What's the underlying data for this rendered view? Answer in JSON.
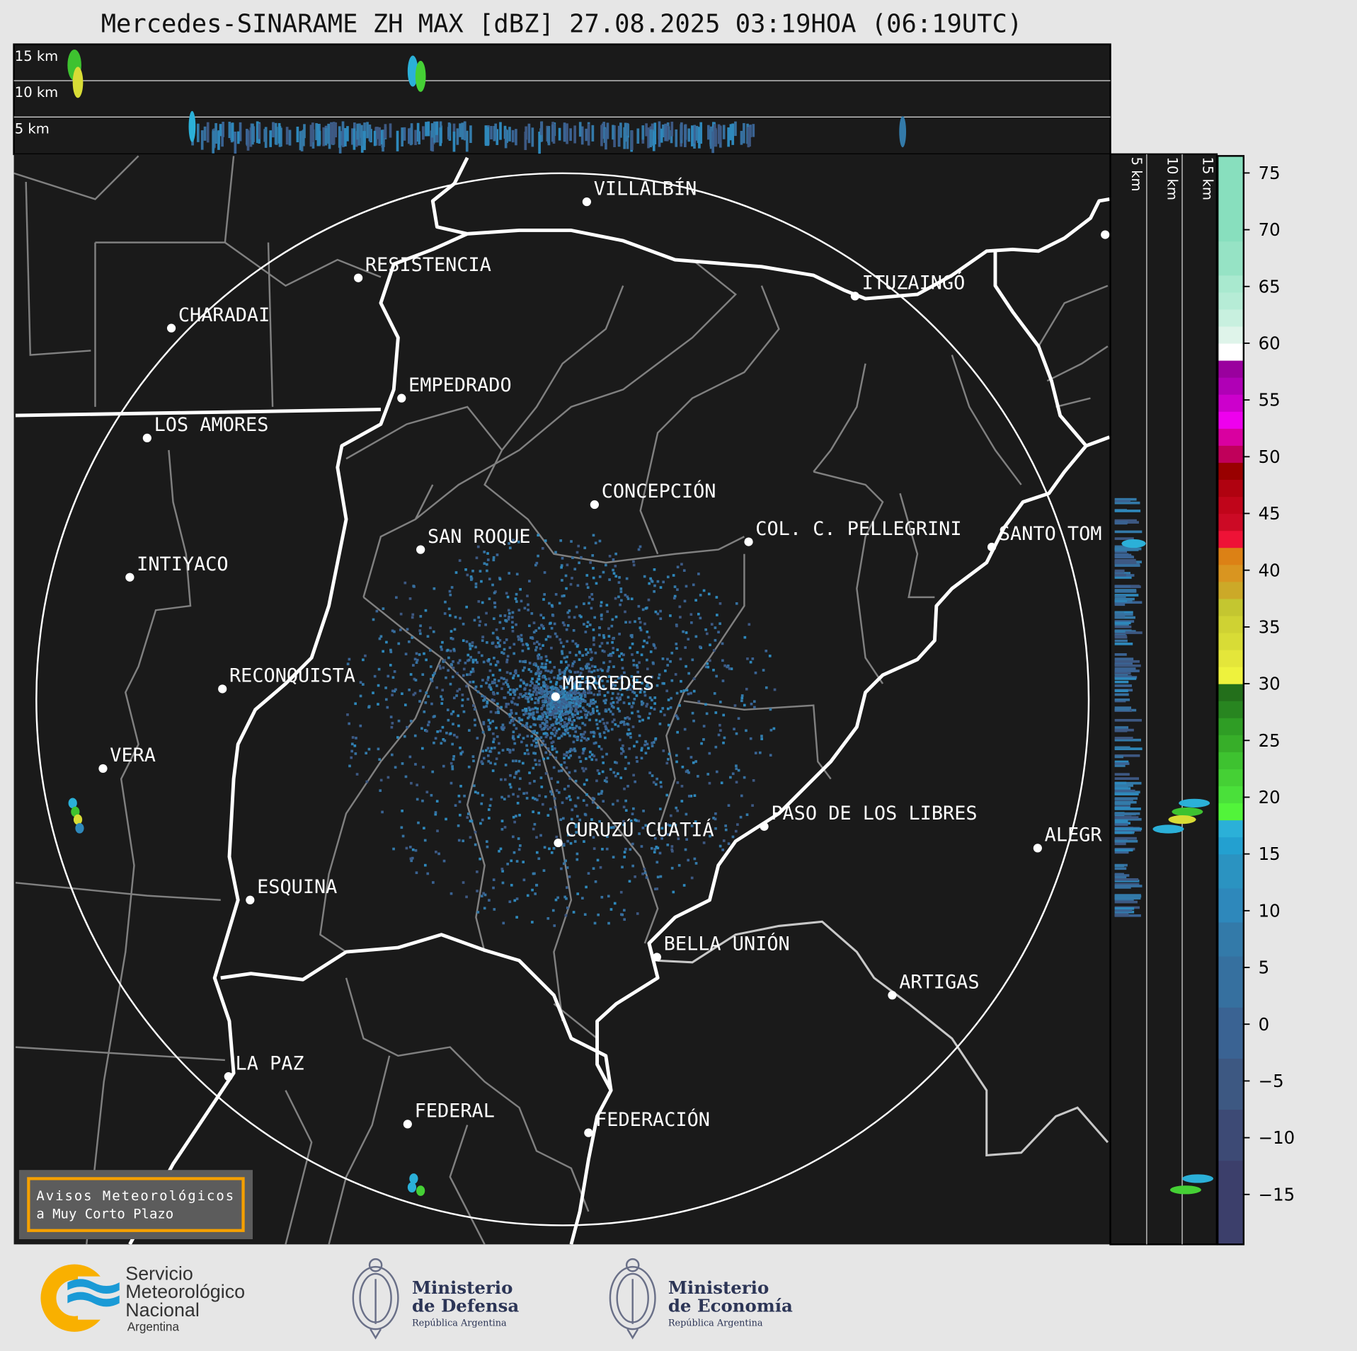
{
  "title": "Mercedes-SINARAME ZH MAX [dBZ] 27.08.2025 03:19HOA (06:19UTC)",
  "top_panel": {
    "labels": [
      "15 km",
      "10 km",
      "5 km"
    ]
  },
  "side_panel": {
    "labels": [
      "5 km",
      "10 km",
      "15 km"
    ]
  },
  "colorbar": {
    "vmin": -19.4,
    "vmax": 76.5,
    "ticks": [
      "75",
      "70",
      "65",
      "60",
      "55",
      "50",
      "45",
      "40",
      "35",
      "30",
      "25",
      "20",
      "15",
      "10",
      "5",
      "0",
      "−5",
      "−10",
      "−15"
    ],
    "tick_values": [
      75,
      70,
      65,
      60,
      55,
      50,
      45,
      40,
      35,
      30,
      25,
      20,
      15,
      10,
      5,
      0,
      -5,
      -10,
      -15
    ],
    "bands": [
      [
        -19.4,
        "#3c3f6b"
      ],
      [
        -12,
        "#3d4a75"
      ],
      [
        -7.5,
        "#3d5882"
      ],
      [
        -3,
        "#3a6393"
      ],
      [
        1.5,
        "#36709f"
      ],
      [
        6,
        "#337aa9"
      ],
      [
        9,
        "#2e88bb"
      ],
      [
        12,
        "#2b93c1"
      ],
      [
        15,
        "#23a0d0"
      ],
      [
        16.5,
        "#2bb0d8"
      ],
      [
        18,
        "#52f43a"
      ],
      [
        19.5,
        "#4ae03a"
      ],
      [
        21,
        "#45d035"
      ],
      [
        22.5,
        "#3ec230"
      ],
      [
        24,
        "#37ae29"
      ],
      [
        25.5,
        "#2f9d25"
      ],
      [
        27,
        "#288520"
      ],
      [
        28.5,
        "#236f1b"
      ],
      [
        30,
        "#eef23d"
      ],
      [
        31.5,
        "#e4e63a"
      ],
      [
        33,
        "#d8dc36"
      ],
      [
        34.5,
        "#cfd233"
      ],
      [
        36,
        "#c4c630"
      ],
      [
        37.5,
        "#cca928"
      ],
      [
        39,
        "#d99520"
      ],
      [
        40.5,
        "#dc8115"
      ],
      [
        42,
        "#ee1236"
      ],
      [
        43.5,
        "#cc0a25"
      ],
      [
        45,
        "#c0051a"
      ],
      [
        46.5,
        "#b00210"
      ],
      [
        48,
        "#990000"
      ],
      [
        49.5,
        "#c0005a"
      ],
      [
        51,
        "#d900a0"
      ],
      [
        52.5,
        "#ee00ee"
      ],
      [
        54,
        "#cc00cc"
      ],
      [
        55.5,
        "#b000b6"
      ],
      [
        57,
        "#9a009e"
      ],
      [
        58.5,
        "#ffffff"
      ],
      [
        60,
        "#dff4ea"
      ],
      [
        61.5,
        "#c8f0df"
      ],
      [
        63,
        "#b6ecd6"
      ],
      [
        64.5,
        "#a9e9cf"
      ],
      [
        66,
        "#96e3c5"
      ],
      [
        69,
        "#88dfbe"
      ]
    ]
  },
  "cities": [
    "VILLALBÍN",
    "RESISTENCIA",
    "CHARADAI",
    "EMPEDRADO",
    "LOS AMORES",
    "ITUZAINGÓ",
    "CONCEPCIÓN",
    "SAN ROQUE",
    "COL. C. PELLEGRINI",
    "SANTO TOM",
    "INTIYACO",
    "RECONQUISTA",
    "MERCEDES",
    "VERA",
    "PASO DE LOS LIBRES",
    "CURUZÚ CUATIÁ",
    "ALEGR",
    "ESQUINA",
    "BELLA UNIÓN",
    "ARTIGAS",
    "LA PAZ",
    "FEDERAL",
    "FEDERACIÓN"
  ],
  "warning_box": {
    "line1": "Avisos Meteorológicos",
    "line2": "a Muy Corto Plazo",
    "border_color": "#f5a000"
  },
  "logos": {
    "smn": {
      "l1": "Servicio",
      "l2": "Meteorológico",
      "l3": "Nacional",
      "l4": "Argentina"
    },
    "defensa": {
      "l1": "Ministerio",
      "l2": "de Defensa",
      "l3": "República Argentina"
    },
    "economia": {
      "l1": "Ministerio",
      "l2": "de Economía",
      "l3": "República Argentina"
    }
  },
  "colors": {
    "background": "#e6e6e6",
    "panel": "#1a1a1a",
    "ministry_text": "#2c3556",
    "smn_yellow": "#f9b000",
    "smn_blue": "#1a9ad6"
  }
}
